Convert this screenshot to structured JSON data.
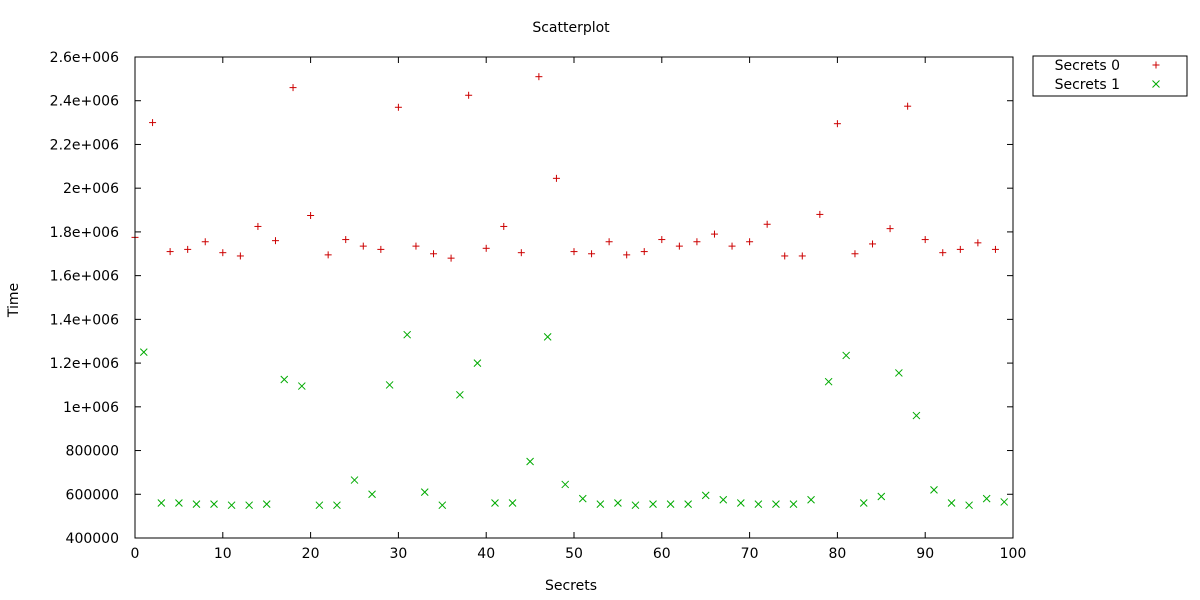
{
  "chart_data": {
    "type": "scatter",
    "title": "Scatterplot",
    "xlabel": "Secrets",
    "ylabel": "Time",
    "xlim": [
      0,
      100
    ],
    "ylim": [
      400000,
      2600000
    ],
    "grid": false,
    "legend_position": "outside-top-right",
    "x_ticks": [
      0,
      10,
      20,
      30,
      40,
      50,
      60,
      70,
      80,
      90,
      100
    ],
    "x_tick_labels": [
      "0",
      "10",
      "20",
      "30",
      "40",
      "50",
      "60",
      "70",
      "80",
      "90",
      "100"
    ],
    "y_ticks": [
      400000,
      600000,
      800000,
      1000000,
      1200000,
      1400000,
      1600000,
      1800000,
      2000000,
      2200000,
      2400000,
      2600000
    ],
    "y_tick_labels": [
      "400000",
      "600000",
      "800000",
      "1e+006",
      "1.2e+006",
      "1.4e+006",
      "1.6e+006",
      "1.8e+006",
      "2e+006",
      "2.2e+006",
      "2.4e+006",
      "2.6e+006"
    ],
    "series": [
      {
        "name": "Secrets 0",
        "marker": "plus",
        "color": "#cc0000",
        "points": [
          [
            0,
            1775000
          ],
          [
            2,
            2300000
          ],
          [
            4,
            1710000
          ],
          [
            6,
            1720000
          ],
          [
            8,
            1755000
          ],
          [
            10,
            1705000
          ],
          [
            12,
            1690000
          ],
          [
            14,
            1825000
          ],
          [
            16,
            1760000
          ],
          [
            18,
            2460000
          ],
          [
            20,
            1875000
          ],
          [
            22,
            1695000
          ],
          [
            24,
            1765000
          ],
          [
            26,
            1735000
          ],
          [
            28,
            1720000
          ],
          [
            30,
            2370000
          ],
          [
            32,
            1735000
          ],
          [
            34,
            1700000
          ],
          [
            36,
            1680000
          ],
          [
            38,
            2425000
          ],
          [
            40,
            1725000
          ],
          [
            42,
            1825000
          ],
          [
            44,
            1705000
          ],
          [
            46,
            2510000
          ],
          [
            48,
            2045000
          ],
          [
            50,
            1710000
          ],
          [
            52,
            1700000
          ],
          [
            54,
            1755000
          ],
          [
            56,
            1695000
          ],
          [
            58,
            1710000
          ],
          [
            60,
            1765000
          ],
          [
            62,
            1735000
          ],
          [
            64,
            1755000
          ],
          [
            66,
            1790000
          ],
          [
            68,
            1735000
          ],
          [
            70,
            1755000
          ],
          [
            72,
            1835000
          ],
          [
            74,
            1690000
          ],
          [
            76,
            1690000
          ],
          [
            78,
            1880000
          ],
          [
            80,
            2295000
          ],
          [
            82,
            1700000
          ],
          [
            84,
            1745000
          ],
          [
            86,
            1815000
          ],
          [
            88,
            2375000
          ],
          [
            90,
            1765000
          ],
          [
            92,
            1705000
          ],
          [
            94,
            1720000
          ],
          [
            96,
            1750000
          ],
          [
            98,
            1720000
          ]
        ]
      },
      {
        "name": "Secrets 1",
        "marker": "cross",
        "color": "#00aa00",
        "points": [
          [
            1,
            1250000
          ],
          [
            3,
            560000
          ],
          [
            5,
            560000
          ],
          [
            7,
            555000
          ],
          [
            9,
            555000
          ],
          [
            11,
            550000
          ],
          [
            13,
            550000
          ],
          [
            15,
            555000
          ],
          [
            17,
            1125000
          ],
          [
            19,
            1095000
          ],
          [
            21,
            550000
          ],
          [
            23,
            550000
          ],
          [
            25,
            665000
          ],
          [
            27,
            600000
          ],
          [
            29,
            1100000
          ],
          [
            31,
            1330000
          ],
          [
            33,
            610000
          ],
          [
            35,
            550000
          ],
          [
            37,
            1055000
          ],
          [
            39,
            1200000
          ],
          [
            41,
            560000
          ],
          [
            43,
            560000
          ],
          [
            45,
            750000
          ],
          [
            47,
            1320000
          ],
          [
            49,
            645000
          ],
          [
            51,
            580000
          ],
          [
            53,
            555000
          ],
          [
            55,
            560000
          ],
          [
            57,
            550000
          ],
          [
            59,
            555000
          ],
          [
            61,
            555000
          ],
          [
            63,
            555000
          ],
          [
            65,
            595000
          ],
          [
            67,
            575000
          ],
          [
            69,
            560000
          ],
          [
            71,
            555000
          ],
          [
            73,
            555000
          ],
          [
            75,
            555000
          ],
          [
            77,
            575000
          ],
          [
            79,
            1115000
          ],
          [
            81,
            1235000
          ],
          [
            83,
            560000
          ],
          [
            85,
            590000
          ],
          [
            87,
            1155000
          ],
          [
            89,
            960000
          ],
          [
            91,
            620000
          ],
          [
            93,
            560000
          ],
          [
            95,
            550000
          ],
          [
            97,
            580000
          ],
          [
            99,
            565000
          ]
        ]
      }
    ]
  }
}
